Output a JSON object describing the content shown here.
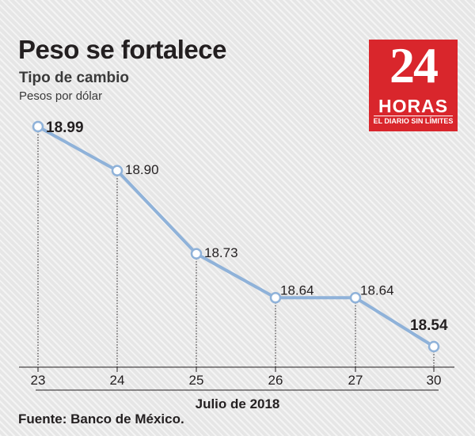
{
  "header": {
    "title": "Peso se fortalece",
    "subtitle": "Tipo de cambio",
    "unit": "Pesos por dólar"
  },
  "logo": {
    "number": "24",
    "word": "HORAS",
    "tagline": "EL DIARIO SIN LÍMITES",
    "color": "#d9262c"
  },
  "footer": {
    "source": "Fuente: Banco de México."
  },
  "chart_data": {
    "type": "line",
    "categories": [
      "23",
      "24",
      "25",
      "26",
      "27",
      "30"
    ],
    "values": [
      18.99,
      18.9,
      18.73,
      18.64,
      18.64,
      18.54
    ],
    "data_labels": [
      "18.99",
      "18.90",
      "18.73",
      "18.64",
      "18.64",
      "18.54"
    ],
    "bold_labels": [
      true,
      false,
      false,
      false,
      false,
      true
    ],
    "xlabel": "Julio de 2018",
    "ylabel": "",
    "ylim": [
      18.5,
      19.01
    ],
    "grid": false,
    "line_color": "#8fb2d9"
  }
}
